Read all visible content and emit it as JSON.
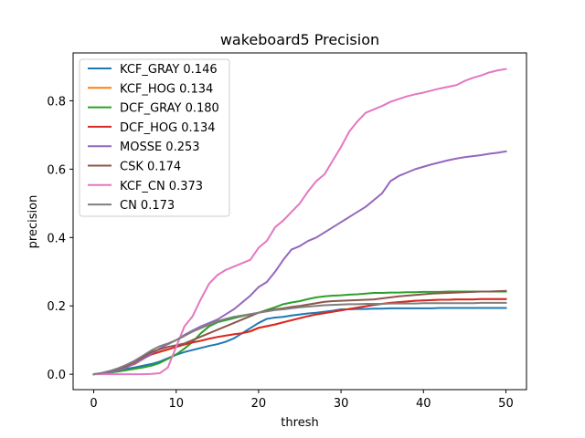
{
  "chart_data": {
    "type": "line",
    "title": "wakeboard5 Precision",
    "xlabel": "thresh",
    "ylabel": "precision",
    "xlim": [
      -2.5,
      52.5
    ],
    "ylim": [
      -0.045,
      0.94
    ],
    "xticks": [
      0,
      10,
      20,
      30,
      40,
      50
    ],
    "xtick_labels": [
      "0",
      "10",
      "20",
      "30",
      "40",
      "50"
    ],
    "yticks": [
      0.0,
      0.2,
      0.4,
      0.6,
      0.8
    ],
    "ytick_labels": [
      "0.0",
      "0.2",
      "0.4",
      "0.6",
      "0.8"
    ],
    "grid": false,
    "legend_position": "top-left",
    "x": [
      0,
      1,
      2,
      3,
      4,
      5,
      6,
      7,
      8,
      9,
      10,
      11,
      12,
      13,
      14,
      15,
      16,
      17,
      18,
      19,
      20,
      21,
      22,
      23,
      24,
      25,
      26,
      27,
      28,
      29,
      30,
      31,
      32,
      33,
      34,
      35,
      36,
      37,
      38,
      39,
      40,
      41,
      42,
      43,
      44,
      45,
      46,
      47,
      48,
      49,
      50
    ],
    "series": [
      {
        "name": "KCF_GRAY 0.146",
        "color": "#1f77b4",
        "values": [
          0.0,
          0.002,
          0.006,
          0.011,
          0.016,
          0.02,
          0.025,
          0.03,
          0.037,
          0.047,
          0.057,
          0.065,
          0.071,
          0.077,
          0.083,
          0.088,
          0.095,
          0.105,
          0.12,
          0.135,
          0.15,
          0.162,
          0.166,
          0.168,
          0.172,
          0.175,
          0.178,
          0.18,
          0.183,
          0.186,
          0.19,
          0.19,
          0.191,
          0.191,
          0.192,
          0.192,
          0.193,
          0.193,
          0.193,
          0.193,
          0.193,
          0.193,
          0.194,
          0.194,
          0.194,
          0.194,
          0.194,
          0.194,
          0.194,
          0.194,
          0.194
        ]
      },
      {
        "name": "KCF_HOG 0.134",
        "color": "#ff7f0e",
        "values": [
          0.0,
          0.003,
          0.008,
          0.015,
          0.022,
          0.03,
          0.045,
          0.058,
          0.065,
          0.072,
          0.08,
          0.087,
          0.093,
          0.098,
          0.104,
          0.109,
          0.113,
          0.117,
          0.12,
          0.125,
          0.135,
          0.14,
          0.145,
          0.152,
          0.158,
          0.164,
          0.17,
          0.175,
          0.179,
          0.183,
          0.187,
          0.191,
          0.195,
          0.199,
          0.203,
          0.206,
          0.209,
          0.211,
          0.213,
          0.215,
          0.216,
          0.217,
          0.218,
          0.218,
          0.219,
          0.219,
          0.219,
          0.22,
          0.22,
          0.22,
          0.22
        ]
      },
      {
        "name": "DCF_GRAY 0.180",
        "color": "#2ca02c",
        "values": [
          0.0,
          0.002,
          0.005,
          0.008,
          0.012,
          0.016,
          0.02,
          0.025,
          0.033,
          0.045,
          0.058,
          0.075,
          0.095,
          0.12,
          0.14,
          0.152,
          0.158,
          0.164,
          0.17,
          0.175,
          0.18,
          0.188,
          0.196,
          0.205,
          0.21,
          0.214,
          0.22,
          0.225,
          0.228,
          0.23,
          0.231,
          0.233,
          0.234,
          0.236,
          0.238,
          0.238,
          0.239,
          0.239,
          0.24,
          0.24,
          0.241,
          0.241,
          0.241,
          0.242,
          0.242,
          0.242,
          0.242,
          0.242,
          0.242,
          0.242,
          0.242
        ]
      },
      {
        "name": "DCF_HOG 0.134",
        "color": "#d62728",
        "values": [
          0.0,
          0.003,
          0.008,
          0.015,
          0.022,
          0.032,
          0.046,
          0.058,
          0.066,
          0.073,
          0.08,
          0.087,
          0.093,
          0.098,
          0.104,
          0.109,
          0.113,
          0.117,
          0.12,
          0.126,
          0.136,
          0.141,
          0.146,
          0.152,
          0.158,
          0.164,
          0.17,
          0.175,
          0.179,
          0.183,
          0.187,
          0.191,
          0.195,
          0.199,
          0.203,
          0.206,
          0.209,
          0.211,
          0.213,
          0.215,
          0.216,
          0.217,
          0.218,
          0.218,
          0.219,
          0.219,
          0.219,
          0.22,
          0.22,
          0.22,
          0.22
        ]
      },
      {
        "name": "MOSSE 0.253",
        "color": "#9467bd",
        "values": [
          0.0,
          0.002,
          0.006,
          0.012,
          0.02,
          0.033,
          0.045,
          0.06,
          0.075,
          0.088,
          0.1,
          0.115,
          0.128,
          0.14,
          0.15,
          0.16,
          0.175,
          0.19,
          0.21,
          0.23,
          0.255,
          0.27,
          0.3,
          0.335,
          0.365,
          0.375,
          0.39,
          0.4,
          0.415,
          0.43,
          0.445,
          0.46,
          0.475,
          0.49,
          0.51,
          0.53,
          0.565,
          0.58,
          0.59,
          0.6,
          0.607,
          0.614,
          0.62,
          0.626,
          0.631,
          0.635,
          0.638,
          0.641,
          0.645,
          0.648,
          0.652
        ]
      },
      {
        "name": "CSK 0.174",
        "color": "#8c564b",
        "values": [
          0.0,
          0.003,
          0.009,
          0.016,
          0.025,
          0.038,
          0.05,
          0.065,
          0.073,
          0.08,
          0.085,
          0.09,
          0.1,
          0.11,
          0.12,
          0.13,
          0.14,
          0.15,
          0.16,
          0.17,
          0.18,
          0.186,
          0.19,
          0.193,
          0.197,
          0.2,
          0.204,
          0.208,
          0.212,
          0.214,
          0.215,
          0.216,
          0.217,
          0.218,
          0.219,
          0.222,
          0.225,
          0.228,
          0.23,
          0.232,
          0.234,
          0.236,
          0.237,
          0.238,
          0.239,
          0.24,
          0.241,
          0.242,
          0.242,
          0.243,
          0.244
        ]
      },
      {
        "name": "KCF_CN 0.373",
        "color": "#e377c2",
        "values": [
          0.0,
          0.0,
          0.0,
          0.0,
          0.0,
          0.0,
          0.0,
          0.001,
          0.003,
          0.02,
          0.08,
          0.14,
          0.17,
          0.22,
          0.265,
          0.29,
          0.305,
          0.315,
          0.325,
          0.335,
          0.37,
          0.39,
          0.43,
          0.45,
          0.475,
          0.5,
          0.535,
          0.565,
          0.585,
          0.625,
          0.665,
          0.71,
          0.74,
          0.765,
          0.775,
          0.785,
          0.797,
          0.805,
          0.813,
          0.819,
          0.824,
          0.83,
          0.836,
          0.841,
          0.846,
          0.858,
          0.867,
          0.874,
          0.883,
          0.889,
          0.893
        ]
      },
      {
        "name": "CN 0.173",
        "color": "#7f7f7f",
        "values": [
          0.0,
          0.004,
          0.01,
          0.018,
          0.028,
          0.04,
          0.055,
          0.07,
          0.082,
          0.09,
          0.1,
          0.112,
          0.125,
          0.135,
          0.145,
          0.155,
          0.162,
          0.168,
          0.172,
          0.176,
          0.18,
          0.184,
          0.188,
          0.19,
          0.193,
          0.196,
          0.198,
          0.2,
          0.202,
          0.203,
          0.204,
          0.205,
          0.205,
          0.206,
          0.206,
          0.206,
          0.207,
          0.207,
          0.207,
          0.207,
          0.208,
          0.208,
          0.208,
          0.208,
          0.208,
          0.208,
          0.208,
          0.209,
          0.209,
          0.209,
          0.209
        ]
      }
    ]
  }
}
